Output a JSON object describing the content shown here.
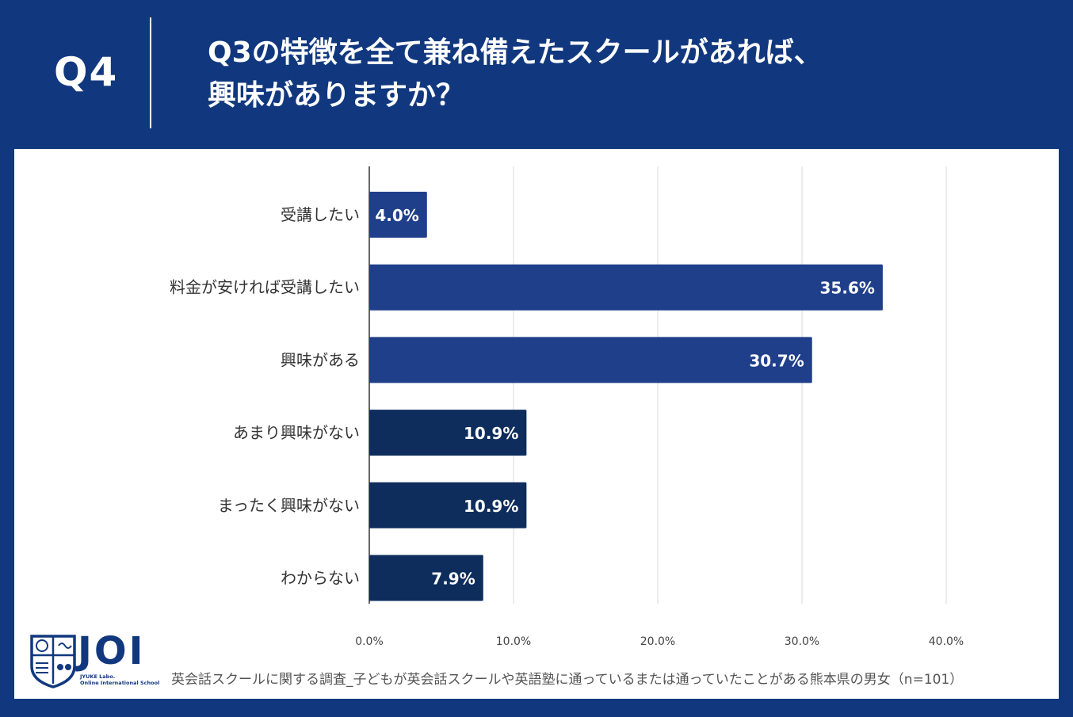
{
  "header": {
    "question_number": "Q4",
    "title_line1": "Q3の特徴を全て兼ね備えたスクールがあれば、",
    "title_line2": "興味がありますか？"
  },
  "chart_data": {
    "type": "bar",
    "orientation": "horizontal",
    "categories": [
      "受講したい",
      "料金が安ければ受講したい",
      "興味がある",
      "あまり興味がない",
      "まったく興味がない",
      "わからない"
    ],
    "values": [
      4.0,
      35.6,
      30.7,
      10.9,
      10.9,
      7.9
    ],
    "value_labels": [
      "4.0%",
      "35.6%",
      "30.7%",
      "10.9%",
      "10.9%",
      "7.9%"
    ],
    "bar_colors": [
      "#1f3f8a",
      "#1f3f8a",
      "#1f3f8a",
      "#0e2d5c",
      "#0e2d5c",
      "#0e2d5c"
    ],
    "xlim": [
      0,
      40
    ],
    "x_ticks": [
      "0.0%",
      "10.0%",
      "20.0%",
      "30.0%",
      "40.0%"
    ],
    "grid": true
  },
  "logo": {
    "text": "JOI",
    "sub_line1": "JYUKE Labo.",
    "sub_line2": "Online International School"
  },
  "footnote": "英会話スクールに関する調査_子どもが英会話スクールや英語塾に通っているまたは通っていたことがある熊本県の男女（n=101）",
  "colors": {
    "background": "#11387f",
    "panel": "#ffffff",
    "bar_primary": "#1f3f8a",
    "bar_secondary": "#0e2d5c"
  }
}
